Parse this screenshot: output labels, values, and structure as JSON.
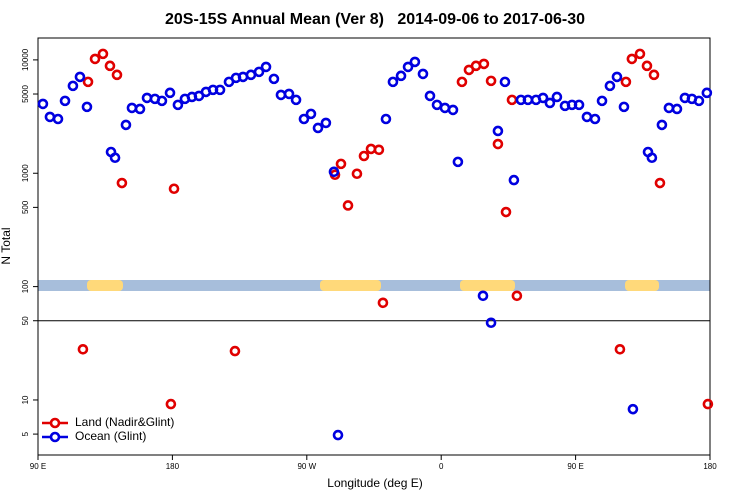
{
  "chart_data": {
    "type": "scatter",
    "title": "20S-15S Annual Mean (Ver 8)   2014-09-06 to 2017-06-30",
    "x_label": "Longitude (deg E)",
    "y_label": "N Total",
    "log_y": true,
    "xlim": [
      90,
      540
    ],
    "ylim": [
      3.27,
      15600
    ],
    "xticks": [
      {
        "value": 90,
        "label": "90 E"
      },
      180,
      {
        "value": 270,
        "label": "90 W"
      },
      {
        "value": 360,
        "label": "0"
      },
      {
        "value": 450,
        "label": "90 E"
      },
      {
        "value": 540,
        "label": "180"
      }
    ],
    "yticks": [
      5,
      10,
      50,
      100,
      500,
      1000,
      5000,
      10000
    ],
    "hline": 50,
    "legend": "bottom-left",
    "series": [
      {
        "name": "Land (Nadir&Glint)",
        "color": "#e00000",
        "x": [
          120.1,
          123.5,
          128.2,
          133.5,
          138.2,
          142.9,
          146.2,
          179.0,
          181.1,
          221.9,
          288.9,
          292.9,
          297.6,
          303.6,
          308.3,
          313.0,
          318.3,
          321.0,
          373.9,
          378.6,
          383.3,
          388.6,
          393.4,
          398.0,
          403.4,
          407.4,
          410.7,
          479.7,
          483.7,
          487.7,
          493.1,
          497.8,
          502.5,
          506.5,
          538.6
        ],
        "values": [
          28,
          6400,
          10200,
          11300,
          8860,
          7380,
          820,
          9.2,
          730,
          27,
          970,
          1210,
          520,
          990,
          1420,
          1640,
          1610,
          72,
          6400,
          8160,
          8860,
          9220,
          6530,
          1810,
          455,
          4440,
          83,
          28,
          6400,
          10200,
          11300,
          8860,
          7380,
          820,
          9.2
        ]
      },
      {
        "name": "Ocean (Glint)",
        "color": "#0000e0",
        "x": [
          93.3,
          98.0,
          103.4,
          108.1,
          113.4,
          118.1,
          122.8,
          138.9,
          141.6,
          148.9,
          152.9,
          158.3,
          163.0,
          168.3,
          173.0,
          178.4,
          183.7,
          188.4,
          193.1,
          197.8,
          202.5,
          207.2,
          211.9,
          217.9,
          222.6,
          227.3,
          232.6,
          238.0,
          242.7,
          248.0,
          252.7,
          258.1,
          262.8,
          268.1,
          272.8,
          277.5,
          282.8,
          288.2,
          290.9,
          323.0,
          327.7,
          333.1,
          337.8,
          342.4,
          347.8,
          352.5,
          357.2,
          362.5,
          367.9,
          371.2,
          388.0,
          393.4,
          398.0,
          402.7,
          408.7,
          413.4,
          418.1,
          423.5,
          428.2,
          432.8,
          437.5,
          442.9,
          447.6,
          452.3,
          457.6,
          463.0,
          467.7,
          473.0,
          477.7,
          482.4,
          488.4,
          498.5,
          501.1,
          507.8,
          512.5,
          517.9,
          523.2,
          527.9,
          532.6,
          537.9
        ],
        "values": [
          4090,
          3140,
          3010,
          4350,
          5900,
          7080,
          3850,
          1540,
          1370,
          2670,
          3770,
          3690,
          4620,
          4530,
          4350,
          5120,
          4010,
          4530,
          4710,
          4810,
          5220,
          5440,
          5440,
          6400,
          6940,
          7080,
          7380,
          7840,
          8670,
          6800,
          4910,
          5010,
          4440,
          3010,
          3340,
          2510,
          2780,
          1030,
          4.9,
          3010,
          6400,
          7230,
          8670,
          9600,
          7520,
          4810,
          4010,
          3770,
          3620,
          1260,
          83,
          48,
          2360,
          6400,
          870,
          4440,
          4440,
          4440,
          4620,
          4170,
          4710,
          3930,
          4010,
          4010,
          3140,
          3010,
          4350,
          5900,
          7080,
          3850,
          8.3,
          1540,
          1370,
          2670,
          3770,
          3690,
          4620,
          4530,
          4350,
          5120
        ]
      }
    ]
  }
}
